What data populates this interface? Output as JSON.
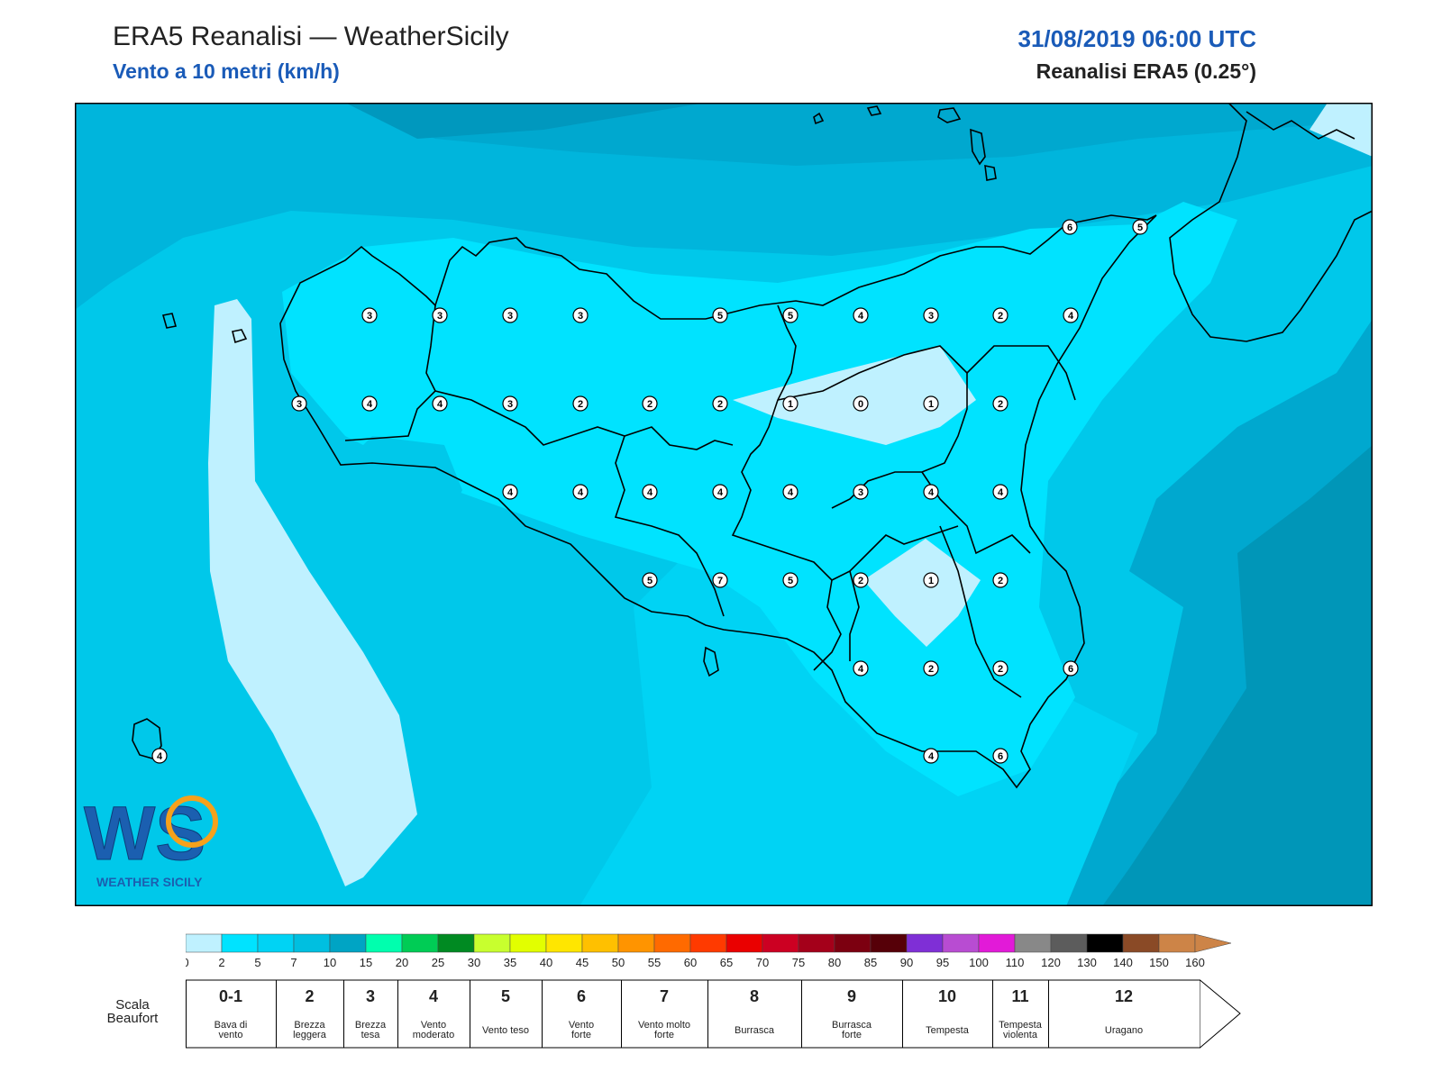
{
  "header": {
    "title": "ERA5 Reanalisi — WeatherSicily",
    "subtitle": "Vento a 10 metri (km/h)",
    "datetime": "31/08/2019 06:00 UTC",
    "source": "Reanalisi ERA5 (0.25°)"
  },
  "logo": {
    "text": "WEATHER SICILY",
    "letters": "WS"
  },
  "map": {
    "description_colors": {
      "sea_dark": "#00a8cf",
      "sea_mid": "#00c8ea",
      "land_light": "#00e3ff",
      "calm": "#bff1ff"
    },
    "beaufort_labels": [
      "6",
      "5",
      "3",
      "3",
      "3",
      "3",
      "5",
      "5",
      "4",
      "3",
      "2",
      "4",
      "3",
      "4",
      "4",
      "3",
      "2",
      "2",
      "2",
      "1",
      "0",
      "1",
      "2",
      "4",
      "4",
      "4",
      "4",
      "4",
      "3",
      "4",
      "4",
      "5",
      "7",
      "5",
      "2",
      "1",
      "2",
      "4",
      "2",
      "2",
      "6",
      "4",
      "6",
      "4"
    ]
  },
  "colorbar": {
    "ticks": [
      "0",
      "2",
      "5",
      "7",
      "10",
      "15",
      "20",
      "25",
      "30",
      "35",
      "40",
      "45",
      "50",
      "55",
      "60",
      "65",
      "70",
      "75",
      "80",
      "85",
      "90",
      "95",
      "100",
      "110",
      "120",
      "130",
      "140",
      "150",
      "160"
    ],
    "colors": [
      "#bff1ff",
      "#00e3ff",
      "#00d3f4",
      "#00bfe0",
      "#00a4c4",
      "#00ffae",
      "#00cc55",
      "#008a22",
      "#c8ff2e",
      "#e2ff00",
      "#ffe600",
      "#ffc000",
      "#ff9400",
      "#ff6a00",
      "#ff3a00",
      "#ea0000",
      "#cc0022",
      "#a4001a",
      "#7c0010",
      "#560008",
      "#7f2fd6",
      "#b84cd2",
      "#e21ad8",
      "#888888",
      "#5c5c5c",
      "#000000",
      "#8a4a26",
      "#cd8447"
    ]
  },
  "beaufort": {
    "caption_line1": "Scala",
    "caption_line2": "Beaufort",
    "scale": [
      {
        "num": "0-1",
        "label1": "Bava di",
        "label2": "vento"
      },
      {
        "num": "2",
        "label1": "Brezza",
        "label2": "leggera"
      },
      {
        "num": "3",
        "label1": "Brezza",
        "label2": "tesa"
      },
      {
        "num": "4",
        "label1": "Vento",
        "label2": "moderato"
      },
      {
        "num": "5",
        "label1": "Vento teso",
        "label2": ""
      },
      {
        "num": "6",
        "label1": "Vento",
        "label2": "forte"
      },
      {
        "num": "7",
        "label1": "Vento molto",
        "label2": "forte"
      },
      {
        "num": "8",
        "label1": "Burrasca",
        "label2": ""
      },
      {
        "num": "9",
        "label1": "Burrasca",
        "label2": "forte"
      },
      {
        "num": "10",
        "label1": "Tempesta",
        "label2": ""
      },
      {
        "num": "11",
        "label1": "Tempesta",
        "label2": "violenta"
      },
      {
        "num": "12",
        "label1": "Uragano",
        "label2": ""
      }
    ]
  }
}
